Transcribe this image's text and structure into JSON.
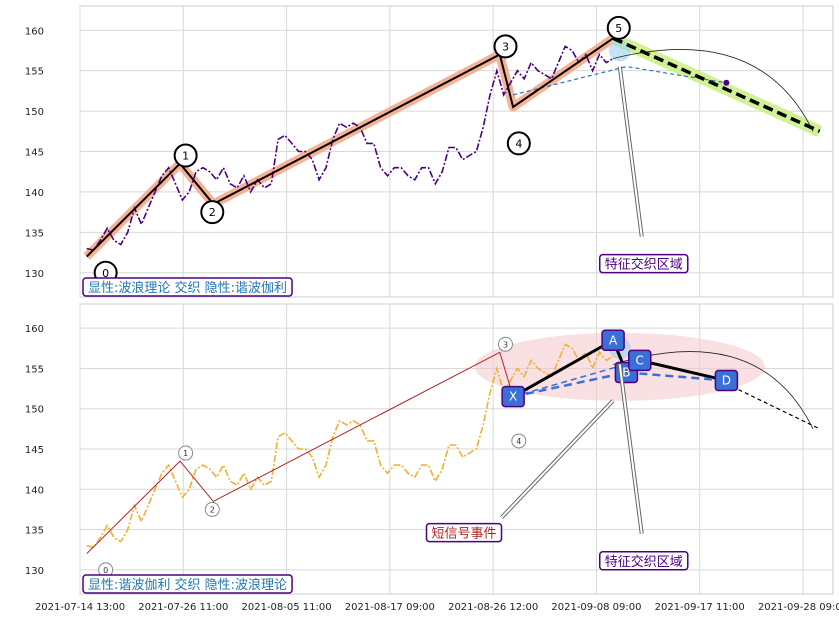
{
  "chart_data": [
    {
      "type": "line",
      "panel": "top",
      "ylim": [
        127,
        163
      ],
      "yticks": [
        130,
        135,
        140,
        145,
        150,
        155,
        160
      ],
      "grid": true,
      "series": [
        {
          "role": "price",
          "color": "#4b0082",
          "style": "dash-dot",
          "points": [
            [
              0,
              133
            ],
            [
              2,
              132.8
            ],
            [
              4,
              134
            ],
            [
              6,
              135.5
            ],
            [
              8,
              134
            ],
            [
              10,
              133.5
            ],
            [
              12,
              135
            ],
            [
              14,
              138
            ],
            [
              16,
              136
            ],
            [
              18,
              138
            ],
            [
              20,
              140
            ],
            [
              22,
              142
            ],
            [
              24,
              143
            ],
            [
              26,
              141
            ],
            [
              28,
              139
            ],
            [
              30,
              140
            ],
            [
              32,
              142.5
            ],
            [
              34,
              143
            ],
            [
              36,
              142.5
            ],
            [
              38,
              141.5
            ],
            [
              40,
              143
            ],
            [
              42,
              141
            ],
            [
              44,
              140.5
            ],
            [
              46,
              142
            ],
            [
              48,
              140
            ],
            [
              50,
              141.5
            ],
            [
              52,
              140.5
            ],
            [
              54,
              141
            ],
            [
              56,
              146.5
            ],
            [
              58,
              147
            ],
            [
              60,
              146
            ],
            [
              62,
              145
            ],
            [
              64,
              145
            ],
            [
              66,
              144
            ],
            [
              68,
              141.5
            ],
            [
              70,
              143
            ],
            [
              72,
              146.5
            ],
            [
              74,
              148.5
            ],
            [
              76,
              148
            ],
            [
              78,
              148.5
            ],
            [
              80,
              148
            ],
            [
              82,
              146
            ],
            [
              84,
              146
            ],
            [
              86,
              143
            ],
            [
              88,
              142
            ],
            [
              90,
              143
            ],
            [
              92,
              143
            ],
            [
              94,
              142
            ],
            [
              96,
              141.5
            ],
            [
              98,
              143
            ],
            [
              100,
              143
            ],
            [
              102,
              141
            ],
            [
              104,
              142.5
            ],
            [
              106,
              145.5
            ],
            [
              108,
              145.5
            ],
            [
              110,
              144
            ],
            [
              112,
              144.5
            ],
            [
              114,
              145
            ],
            [
              116,
              148
            ],
            [
              118,
              152
            ],
            [
              120,
              155
            ],
            [
              122,
              152
            ],
            [
              124,
              153.5
            ],
            [
              126,
              155
            ],
            [
              128,
              154
            ],
            [
              130,
              156
            ],
            [
              132,
              155
            ],
            [
              134,
              154.5
            ],
            [
              136,
              154
            ],
            [
              138,
              156
            ],
            [
              140,
              158
            ],
            [
              142,
              157.5
            ],
            [
              144,
              156
            ],
            [
              146,
              157
            ],
            [
              148,
              155
            ],
            [
              150,
              157
            ],
            [
              152,
              156
            ],
            [
              154,
              156.5
            ]
          ]
        },
        {
          "role": "wave-trend",
          "color": "#f4a582",
          "points": [
            [
              0,
              132
            ],
            [
              14,
              143.5
            ],
            [
              19,
              138.5
            ],
            [
              62,
              157
            ],
            [
              64,
              150.5
            ],
            [
              79,
              159
            ],
            [
              110,
              147.5
            ]
          ]
        },
        {
          "role": "wave-zigzag",
          "color": "#000000",
          "points": [
            [
              0,
              132
            ],
            [
              14,
              143.5
            ],
            [
              19,
              138.5
            ],
            [
              62,
              157
            ],
            [
              64,
              150.5
            ],
            [
              79,
              159
            ]
          ]
        },
        {
          "role": "forecast",
          "color": "#000000",
          "style": "thick-dashed",
          "points": [
            [
              79,
              159
            ],
            [
              110,
              147.5
            ]
          ]
        },
        {
          "role": "harmonic-curve",
          "color": "#3070c0",
          "style": "dashed",
          "points": [
            [
              64,
              152
            ],
            [
              81,
              155.5
            ],
            [
              96,
              153.5
            ]
          ]
        }
      ],
      "wave_labels": [
        {
          "label": "0",
          "x": 0,
          "y": 130
        },
        {
          "label": "1",
          "x": 12,
          "y": 144.5
        },
        {
          "label": "2",
          "x": 16,
          "y": 137.5
        },
        {
          "label": "3",
          "x": 60,
          "y": 158
        },
        {
          "label": "4",
          "x": 62,
          "y": 146
        },
        {
          "label": "5",
          "x": 77,
          "y": 160.3
        }
      ],
      "annotations": [
        {
          "text": "特征交织区域",
          "x": 83,
          "y": 131,
          "color": "#4b0082"
        },
        {
          "text": "显性:波浪理论 交织 隐性:谐波伽利",
          "x": 0,
          "y": 128,
          "color": "#1f77b4",
          "position": "bottom-left"
        }
      ]
    },
    {
      "type": "line",
      "panel": "bottom",
      "ylim": [
        127,
        163
      ],
      "yticks": [
        130,
        135,
        140,
        145,
        150,
        155,
        160
      ],
      "grid": true,
      "xtick_labels": [
        "2021-07-14 13:00",
        "2021-07-26 11:00",
        "2021-08-05 11:00",
        "2021-08-17 09:00",
        "2021-08-26 12:00",
        "2021-09-08 09:00",
        "2021-09-17 11:00",
        "2021-09-28 09:00"
      ],
      "series": [
        {
          "role": "price",
          "color": "#f0b030",
          "style": "dash-dot",
          "points": [
            [
              0,
              133
            ],
            [
              2,
              132.8
            ],
            [
              4,
              134
            ],
            [
              6,
              135.5
            ],
            [
              8,
              134
            ],
            [
              10,
              133.5
            ],
            [
              12,
              135
            ],
            [
              14,
              138
            ],
            [
              16,
              136
            ],
            [
              18,
              138
            ],
            [
              20,
              140
            ],
            [
              22,
              142
            ],
            [
              24,
              143
            ],
            [
              26,
              141
            ],
            [
              28,
              139
            ],
            [
              30,
              140
            ],
            [
              32,
              142.5
            ],
            [
              34,
              143
            ],
            [
              36,
              142.5
            ],
            [
              38,
              141.5
            ],
            [
              40,
              143
            ],
            [
              42,
              141
            ],
            [
              44,
              140.5
            ],
            [
              46,
              142
            ],
            [
              48,
              140
            ],
            [
              50,
              141.5
            ],
            [
              52,
              140.5
            ],
            [
              54,
              141
            ],
            [
              56,
              146.5
            ],
            [
              58,
              147
            ],
            [
              60,
              146
            ],
            [
              62,
              145
            ],
            [
              64,
              145
            ],
            [
              66,
              144
            ],
            [
              68,
              141.5
            ],
            [
              70,
              143
            ],
            [
              72,
              146.5
            ],
            [
              74,
              148.5
            ],
            [
              76,
              148
            ],
            [
              78,
              148.5
            ],
            [
              80,
              148
            ],
            [
              82,
              146
            ],
            [
              84,
              146
            ],
            [
              86,
              143
            ],
            [
              88,
              142
            ],
            [
              90,
              143
            ],
            [
              92,
              143
            ],
            [
              94,
              142
            ],
            [
              96,
              141.5
            ],
            [
              98,
              143
            ],
            [
              100,
              143
            ],
            [
              102,
              141
            ],
            [
              104,
              142.5
            ],
            [
              106,
              145.5
            ],
            [
              108,
              145.5
            ],
            [
              110,
              144
            ],
            [
              112,
              144.5
            ],
            [
              114,
              145
            ],
            [
              116,
              148
            ],
            [
              118,
              152
            ],
            [
              120,
              155
            ],
            [
              122,
              152
            ],
            [
              124,
              153.5
            ],
            [
              126,
              155
            ],
            [
              128,
              154
            ],
            [
              130,
              156
            ],
            [
              132,
              155
            ],
            [
              134,
              154.5
            ],
            [
              136,
              154
            ],
            [
              138,
              156
            ],
            [
              140,
              158
            ],
            [
              142,
              157.5
            ],
            [
              144,
              156
            ],
            [
              146,
              157
            ],
            [
              148,
              155
            ],
            [
              150,
              157
            ],
            [
              152,
              156
            ],
            [
              154,
              156.5
            ]
          ]
        },
        {
          "role": "wave-zigzag",
          "color": "#b22222",
          "points": [
            [
              0,
              132
            ],
            [
              14,
              143.5
            ],
            [
              19,
              138.5
            ],
            [
              62,
              157
            ],
            [
              64,
              151.5
            ]
          ]
        },
        {
          "role": "forecast",
          "color": "#000000",
          "style": "dashed",
          "points": [
            [
              95,
              153.5
            ],
            [
              110,
              147.5
            ]
          ]
        }
      ],
      "harmonic_points": [
        {
          "label": "X",
          "x": 64,
          "y": 151.5
        },
        {
          "label": "A",
          "x": 79,
          "y": 158.5
        },
        {
          "label": "B",
          "x": 81,
          "y": 154.5
        },
        {
          "label": "C",
          "x": 83,
          "y": 156
        },
        {
          "label": "D",
          "x": 96,
          "y": 153.5
        }
      ],
      "wave_labels": [
        {
          "label": "0",
          "x": 0,
          "y": 130
        },
        {
          "label": "1",
          "x": 12,
          "y": 144.5
        },
        {
          "label": "2",
          "x": 16,
          "y": 137.5
        },
        {
          "label": "3",
          "x": 60,
          "y": 158
        },
        {
          "label": "4",
          "x": 62,
          "y": 146
        }
      ],
      "annotations": [
        {
          "text": "短信号事件",
          "x": 57,
          "y": 134.5,
          "color": "#b22222"
        },
        {
          "text": "特征交织区域",
          "x": 83,
          "y": 131,
          "color": "#4b0082"
        },
        {
          "text": "显性:谐波伽利 交织 隐性:波浪理论",
          "x": 0,
          "y": 128,
          "color": "#1f77b4",
          "position": "bottom-left"
        }
      ]
    }
  ]
}
